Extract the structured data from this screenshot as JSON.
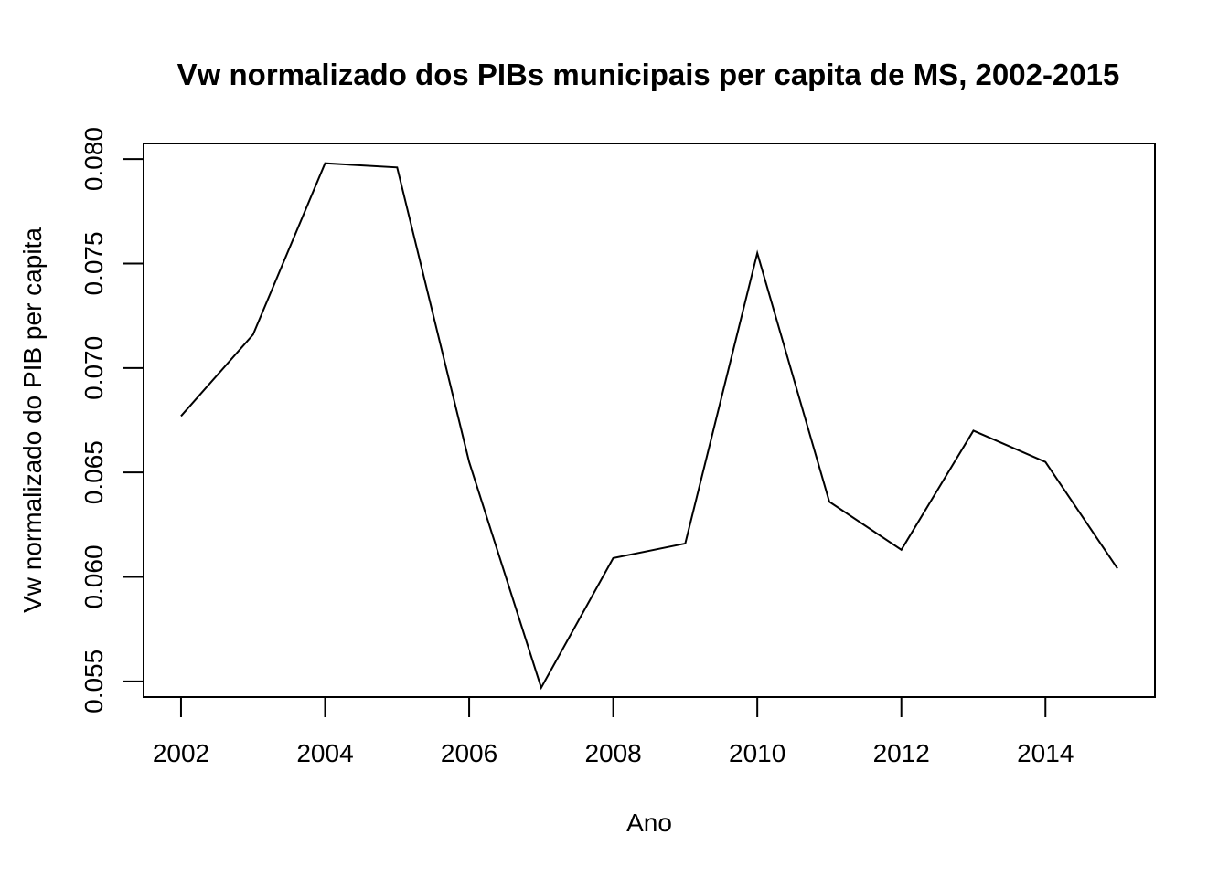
{
  "chart_data": {
    "type": "line",
    "title": "Vw normalizado dos PIBs municipais per capita de MS, 2002-2015",
    "xlabel": "Ano",
    "ylabel": "Vw normalizado do PIB per capita",
    "x": [
      2002,
      2003,
      2004,
      2005,
      2006,
      2007,
      2008,
      2009,
      2010,
      2011,
      2012,
      2013,
      2014,
      2015
    ],
    "series": [
      {
        "values": [
          0.0677,
          0.0716,
          0.0798,
          0.0796,
          0.0655,
          0.0547,
          0.0609,
          0.0616,
          0.0755,
          0.0636,
          0.0613,
          0.067,
          0.0655,
          0.0604
        ]
      }
    ],
    "xlim": [
      2001.48,
      2015.52
    ],
    "ylim": [
      0.05425,
      0.08075
    ],
    "xticks": [
      "2002",
      "2004",
      "2006",
      "2008",
      "2010",
      "2012",
      "2014"
    ],
    "yticks": [
      "0.055",
      "0.060",
      "0.065",
      "0.070",
      "0.075",
      "0.080"
    ],
    "grid": false,
    "line_color": "#000000"
  }
}
